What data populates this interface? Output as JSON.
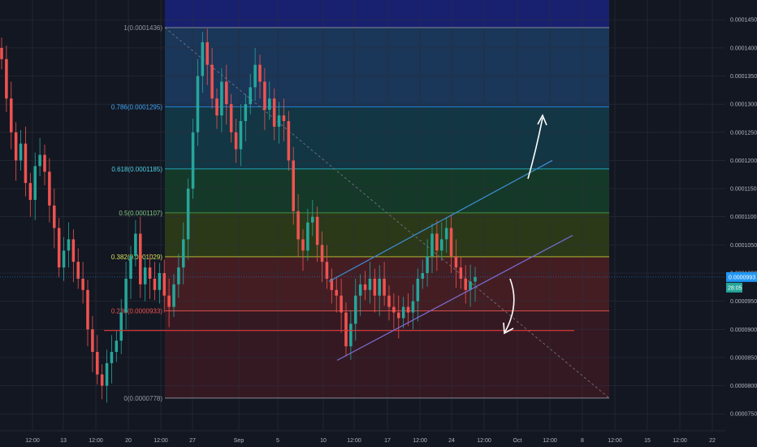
{
  "chart_data": {
    "type": "candlestick",
    "colors": {
      "background": "#131722",
      "up": "#26a69a",
      "down": "#ef5350",
      "grid": "#2a2e39",
      "channel_upper": "#3d8fd6",
      "channel_lower": "#7b6fd6",
      "support": "#e53935",
      "price_line": "#2196f3",
      "arrow": "#ffffff"
    },
    "y_axis": {
      "ylim": [
        7.2e-05,
        0.0001485
      ],
      "ticks": [
        "0.0000750",
        "0.0000800",
        "0.0000850",
        "0.0000900",
        "0.0000950",
        "0.0001000",
        "0.0001050",
        "0.0001100",
        "0.0001150",
        "0.0001200",
        "0.0001250",
        "0.0001300",
        "0.0001350",
        "0.0001400",
        "0.0001450"
      ],
      "current_price": "0.0000993",
      "countdown": "28:05"
    },
    "x_axis": {
      "ticks": [
        "12:00",
        "13",
        "12:00",
        "20",
        "12:00",
        "27",
        "Sep",
        "5",
        "10",
        "12:00",
        "17",
        "12:00",
        "24",
        "12:00",
        "Oct",
        "12:00",
        "8",
        "12:00",
        "15",
        "12:00",
        "22"
      ]
    },
    "fib_levels": [
      {
        "label": "1(0.0001436)",
        "value": 0.0001436,
        "fill": "#2a2e39"
      },
      {
        "label": "0.786(0.0001295)",
        "value": 0.0001295,
        "fill": "#1c3a5e"
      },
      {
        "label": "0.618(0.0001185)",
        "value": 0.0001185,
        "fill": "#143a48"
      },
      {
        "label": "0.5(0.0001107)",
        "value": 0.0001107,
        "fill": "#163d2a"
      },
      {
        "label": "0.382(0.0001029)",
        "value": 0.0001029,
        "fill": "#2f3d18"
      },
      {
        "label": "0.236(0.0000933)",
        "value": 9.33e-05,
        "fill": "#4a1e24"
      },
      {
        "label": "0(0.0000778)",
        "value": 7.78e-05,
        "fill": "#3a1a22"
      }
    ],
    "fib_line_colors": [
      "#9598a1",
      "#2196f3",
      "#26c6da",
      "#4caf50",
      "#c0ca33",
      "#ef5350",
      "#9598a1"
    ],
    "fib_label_colors": [
      "#9598a1",
      "#42a5f5",
      "#4dd0e1",
      "#81c784",
      "#d4e157",
      "#ef5350",
      "#9598a1"
    ],
    "support_level": 8.98e-05,
    "channel_upper": [
      [
        405,
        9.85e-05
      ],
      [
        680,
        0.00012
      ]
    ],
    "channel_lower": [
      [
        415,
        8.45e-05
      ],
      [
        705,
        0.0001067
      ]
    ],
    "closes": [
      0.000138,
      0.000131,
      0.000125,
      0.00012,
      0.000123,
      0.000116,
      0.000113,
      0.000119,
      0.000121,
      0.000118,
      0.000112,
      0.000108,
      0.000101,
      0.000104,
      0.000106,
      0.000102,
      9.9e-05,
      9.7e-05,
      9e-05,
      8.6e-05,
      8.2e-05,
      8e-05,
      8.4e-05,
      8.6e-05,
      8.8e-05,
      9.3e-05,
      9.9e-05,
      0.000103,
      0.000107,
      9.8e-05,
      0.000101,
      9.9e-05,
      9.7e-05,
      0.0001,
      9.6e-05,
      9.4e-05,
      9.8e-05,
      0.000101,
      0.000106,
      0.000115,
      0.000125,
      0.000135,
      0.000141,
      0.000137,
      0.000131,
      0.000128,
      0.000134,
      0.00013,
      0.000125,
      0.000122,
      0.000127,
      0.00013,
      0.000133,
      0.000137,
      0.000134,
      0.000129,
      0.000131,
      0.000126,
      0.000128,
      0.000127,
      0.00012,
      0.000111,
      0.000106,
      0.000104,
      0.000109,
      0.00011,
      0.000105,
      0.000102,
      9.9e-05,
      9.7e-05,
      9.6e-05,
      9.3e-05,
      8.7e-05,
      9.1e-05,
      9.6e-05,
      9.8e-05,
      9.7e-05,
      9.9e-05,
      9.6e-05,
      9.9e-05,
      9.6e-05,
      9.4e-05,
      9.3e-05,
      9.2e-05,
      9.4e-05,
      9.3e-05,
      9.5e-05,
      9.9e-05,
      0.0001,
      0.000103,
      0.000107,
      0.000104,
      0.000106,
      0.000108,
      0.000103,
      0.000101,
      9.9e-05,
      9.7e-05,
      9.85e-05,
      9.93e-05
    ]
  }
}
